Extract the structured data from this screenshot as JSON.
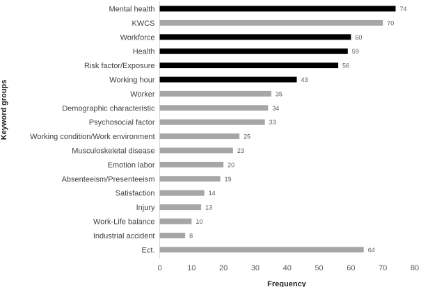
{
  "chart_data": {
    "type": "bar",
    "orientation": "horizontal",
    "categories": [
      "Mental health",
      "KWCS",
      "Workforce",
      "Health",
      "Risk factor/Exposure",
      "Working hour",
      "Worker",
      "Demographic characteristic",
      "Psychosocial factor",
      "Working condition/Work environment",
      "Musculoskeletal disease",
      "Emotion labor",
      "Absenteeism/Presenteeism",
      "Satisfaction",
      "Injury",
      "Work-Life balance",
      "Industrial accident",
      "Ect."
    ],
    "values": [
      74,
      70,
      60,
      59,
      56,
      43,
      35,
      34,
      33,
      25,
      23,
      20,
      19,
      14,
      13,
      10,
      8,
      64
    ],
    "bar_colors": [
      "#000000",
      "#a6a6a6",
      "#000000",
      "#000000",
      "#000000",
      "#000000",
      "#a6a6a6",
      "#a6a6a6",
      "#a6a6a6",
      "#a6a6a6",
      "#a6a6a6",
      "#a6a6a6",
      "#a6a6a6",
      "#a6a6a6",
      "#a6a6a6",
      "#a6a6a6",
      "#a6a6a6",
      "#a6a6a6"
    ],
    "xlabel": "Frequency",
    "ylabel": "Keyword groups",
    "xlim": [
      0,
      80
    ],
    "xticks": [
      0,
      10,
      20,
      30,
      40,
      50,
      60,
      70,
      80
    ],
    "grid": false,
    "data_labels": true
  }
}
